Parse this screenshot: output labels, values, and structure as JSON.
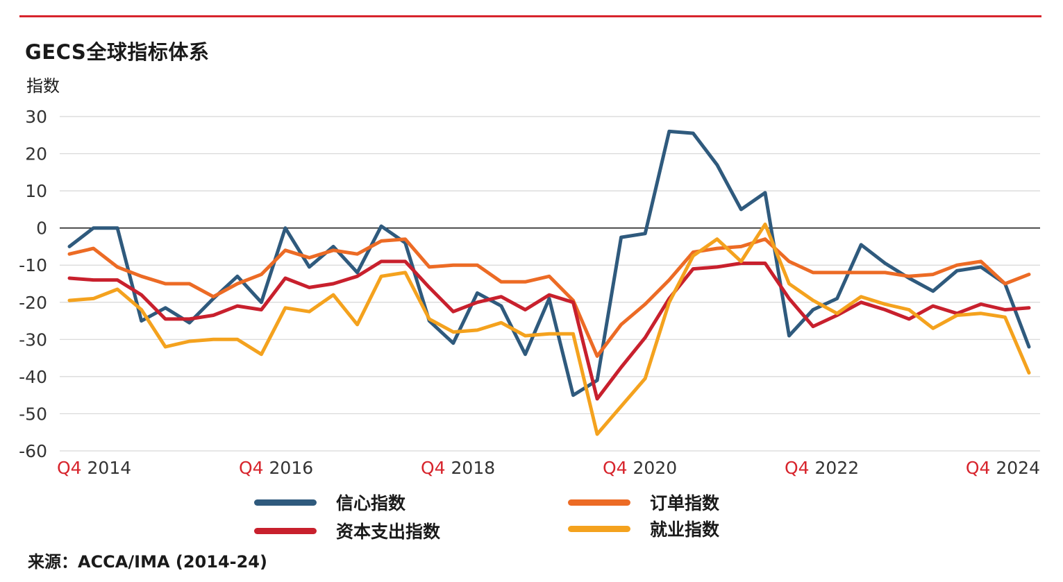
{
  "header": {
    "title": "GECS全球指标体系",
    "ylabel": "指数"
  },
  "footer": {
    "source": "来源：ACCA/IMA (2014-24)"
  },
  "chart_data": {
    "type": "line",
    "title": "GECS全球指标体系",
    "ylabel": "指数",
    "xlabel": "",
    "ylim": [
      -60,
      30
    ],
    "yticks": [
      30,
      20,
      10,
      0,
      -10,
      -20,
      -30,
      -40,
      -50,
      -60
    ],
    "x_tick_labels": [
      {
        "prefix": "Q4",
        "year": "2014"
      },
      {
        "prefix": "Q4",
        "year": "2016"
      },
      {
        "prefix": "Q4",
        "year": "2018"
      },
      {
        "prefix": "Q4",
        "year": "2020"
      },
      {
        "prefix": "Q4",
        "year": "2022"
      },
      {
        "prefix": "Q4",
        "year": "2024"
      }
    ],
    "tick_prefix_color": "#d7242c",
    "x_start": "Q3 2014",
    "x_end": "Q4 2024",
    "grid": "horizontal",
    "legend_position": "bottom",
    "series": [
      {
        "name": "信心指数",
        "color": "#2f5a7d",
        "values": [
          -5,
          0,
          0,
          -25,
          -21.5,
          -25.5,
          -19,
          -13,
          -20,
          0,
          -10.5,
          -5,
          -12,
          0.5,
          -4,
          -25,
          -31,
          -17.5,
          -21,
          -34,
          -19,
          -45,
          -41,
          -2.5,
          -1.5,
          26,
          25.5,
          17,
          5,
          9.5,
          -29,
          -22,
          -19,
          -4.5,
          -9.5,
          -13.5,
          -17,
          -11.5,
          -10.5,
          -15,
          -32
        ]
      },
      {
        "name": "订单指数",
        "color": "#ec6b25",
        "values": [
          -7,
          -5.5,
          -10.5,
          -13,
          -15,
          -15,
          -18.5,
          -15,
          -12.5,
          -6,
          -8,
          -6,
          -7,
          -3.5,
          -3,
          -10.5,
          -10,
          -10,
          -14.5,
          -14.5,
          -13,
          -19.5,
          -34.5,
          -26,
          -20.5,
          -14,
          -6.5,
          -5.5,
          -5,
          -3,
          -9,
          -12,
          -12,
          -12,
          -12,
          -13,
          -12.5,
          -10,
          -9,
          -15,
          -12.5
        ]
      },
      {
        "name": "资本支出指数",
        "color": "#c8202d",
        "values": [
          -13.5,
          -14,
          -14,
          -18,
          -24.5,
          -24.5,
          -23.5,
          -21,
          -22,
          -13.5,
          -16,
          -15,
          -13,
          -9,
          -9,
          -16,
          -22.5,
          -20,
          -18.5,
          -22,
          -18,
          -20,
          -46,
          -37.5,
          -29.5,
          -19,
          -11,
          -10.5,
          -9.5,
          -9.5,
          -19,
          -26.5,
          -23.5,
          -20,
          -22,
          -24.5,
          -21,
          -23,
          -20.5,
          -22,
          -21.5
        ]
      },
      {
        "name": "就业指数",
        "color": "#f4a21e",
        "values": [
          -19.5,
          -19,
          -16.5,
          -22,
          -32,
          -30.5,
          -30,
          -30,
          -34,
          -21.5,
          -22.5,
          -18,
          -26,
          -13,
          -12,
          -24.5,
          -28,
          -27.5,
          -25.5,
          -29,
          -28.5,
          -28.5,
          -55.5,
          -48,
          -40.5,
          -20,
          -7.5,
          -3,
          -9,
          1,
          -15,
          -19.5,
          -23,
          -18.5,
          -20.5,
          -22,
          -27,
          -23.5,
          -23,
          -24,
          -39
        ]
      }
    ]
  }
}
